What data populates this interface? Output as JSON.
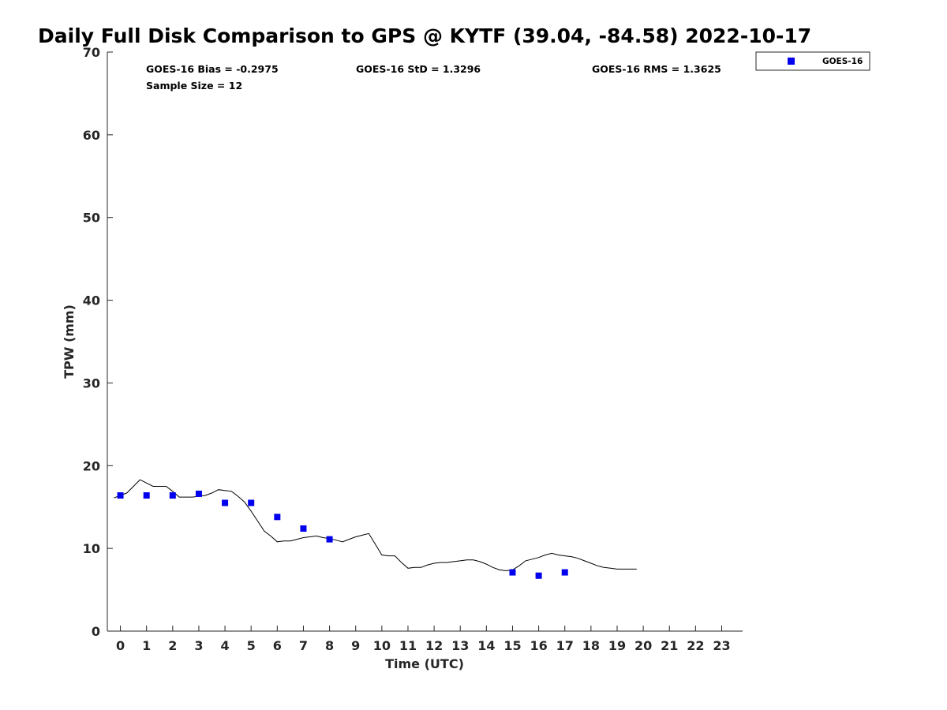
{
  "chart_data": {
    "type": "scatter",
    "title": "Daily Full Disk Comparison to GPS @ KYTF (39.04, -84.58) 2022-10-17",
    "xlabel": "Time (UTC)",
    "ylabel": "TPW (mm)",
    "xlim": [
      -0.5,
      23.8
    ],
    "ylim": [
      0,
      70
    ],
    "x_ticks": [
      "0",
      "1",
      "2",
      "3",
      "4",
      "5",
      "6",
      "7",
      "8",
      "9",
      "10",
      "11",
      "12",
      "13",
      "14",
      "15",
      "16",
      "17",
      "18",
      "19",
      "20",
      "21",
      "22",
      "23"
    ],
    "y_ticks": [
      "0",
      "10",
      "20",
      "30",
      "40",
      "50",
      "60",
      "70"
    ],
    "grid": false,
    "legend_position": "top-right",
    "stats": {
      "bias": "GOES-16 Bias = -0.2975",
      "std": "GOES-16 StD = 1.3296",
      "rms": "GOES-16 RMS = 1.3625",
      "sample": "Sample Size = 12"
    },
    "series": [
      {
        "name": "GOES-16",
        "kind": "scatter",
        "color": "#0000ee",
        "x": [
          0,
          1,
          2,
          3,
          4,
          5,
          6,
          7,
          8,
          15,
          16,
          17
        ],
        "y": [
          16.4,
          16.4,
          16.4,
          16.6,
          15.5,
          15.5,
          13.8,
          12.4,
          11.1,
          7.1,
          6.7,
          7.1
        ]
      },
      {
        "kind": "line",
        "color": "#000000",
        "x": [
          -0.25,
          0,
          0.25,
          0.5,
          0.75,
          1,
          1.25,
          1.5,
          1.75,
          2,
          2.25,
          2.5,
          2.75,
          3,
          3.25,
          3.5,
          3.75,
          4,
          4.25,
          4.5,
          4.75,
          5,
          5.25,
          5.5,
          5.75,
          6,
          6.25,
          6.5,
          6.75,
          7,
          7.25,
          7.5,
          7.75,
          8,
          8.25,
          8.5,
          8.75,
          9,
          9.25,
          9.5,
          9.75,
          10,
          10.25,
          10.5,
          10.75,
          11,
          11.25,
          11.5,
          11.75,
          12,
          12.25,
          12.5,
          12.75,
          13,
          13.25,
          13.5,
          13.75,
          14,
          14.25,
          14.5,
          14.75,
          15,
          15.25,
          15.5,
          15.75,
          16,
          16.25,
          16.5,
          16.75,
          17,
          17.25,
          17.5,
          17.75,
          18,
          18.25,
          18.5,
          18.75,
          19,
          19.25,
          19.5,
          19.75
        ],
        "y": [
          16.1,
          16.4,
          16.7,
          17.5,
          18.3,
          17.9,
          17.5,
          17.5,
          17.5,
          16.9,
          16.2,
          16.2,
          16.2,
          16.3,
          16.4,
          16.7,
          17.1,
          17.0,
          16.9,
          16.3,
          15.6,
          14.5,
          13.3,
          12.1,
          11.5,
          10.8,
          10.9,
          10.9,
          11.1,
          11.3,
          11.4,
          11.5,
          11.3,
          11.2,
          11.0,
          10.8,
          11.1,
          11.4,
          11.6,
          11.8,
          10.5,
          9.2,
          9.1,
          9.1,
          8.3,
          7.6,
          7.7,
          7.7,
          8.0,
          8.2,
          8.3,
          8.3,
          8.4,
          8.5,
          8.6,
          8.6,
          8.4,
          8.1,
          7.7,
          7.4,
          7.3,
          7.4,
          7.9,
          8.5,
          8.7,
          8.9,
          9.2,
          9.4,
          9.2,
          9.1,
          9.0,
          8.8,
          8.5,
          8.2,
          7.9,
          7.7,
          7.6,
          7.5,
          7.5,
          7.5,
          7.5
        ]
      }
    ]
  }
}
